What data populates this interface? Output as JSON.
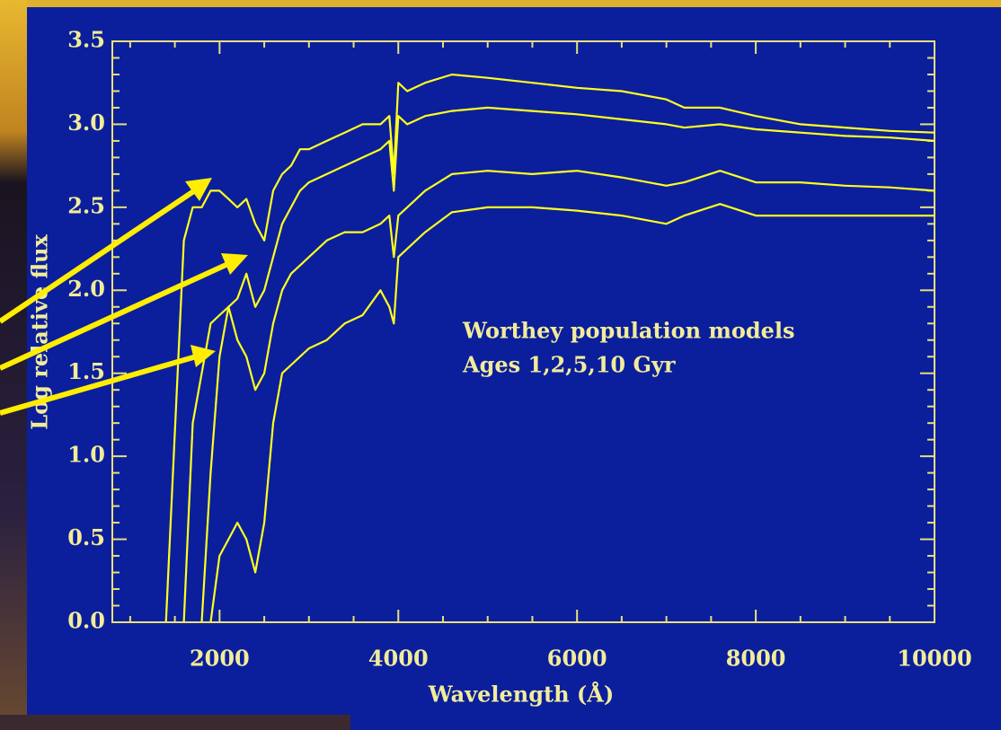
{
  "chart_data": {
    "type": "line",
    "xlabel": "Wavelength (Å)",
    "ylabel": "Log relative flux",
    "annotations": [
      "Worthey population models",
      "Ages 1,2,5,10 Gyr"
    ],
    "x": [
      1400,
      1600,
      1700,
      1800,
      1900,
      2000,
      2100,
      2200,
      2300,
      2400,
      2500,
      2600,
      2700,
      2800,
      2900,
      3000,
      3200,
      3400,
      3600,
      3800,
      3900,
      3950,
      4000,
      4100,
      4300,
      4600,
      5000,
      5500,
      6000,
      6500,
      7000,
      7200,
      7600,
      8000,
      8500,
      9000,
      9500,
      10000
    ],
    "series": [
      {
        "color": "#ffff1e",
        "values": [
          0,
          2.3,
          2.5,
          2.5,
          2.6,
          2.6,
          2.55,
          2.5,
          2.55,
          2.4,
          2.3,
          2.6,
          2.7,
          2.75,
          2.85,
          2.85,
          2.9,
          2.95,
          3.0,
          3.0,
          3.05,
          2.7,
          3.25,
          3.2,
          3.25,
          3.3,
          3.28,
          3.25,
          3.22,
          3.2,
          3.15,
          3.1,
          3.1,
          3.05,
          3.0,
          2.98,
          2.96,
          2.95
        ]
      },
      {
        "color": "#ffff1e",
        "values": [
          null,
          0,
          1.2,
          1.5,
          1.8,
          1.85,
          1.9,
          1.95,
          2.1,
          1.9,
          2.0,
          2.2,
          2.4,
          2.5,
          2.6,
          2.65,
          2.7,
          2.75,
          2.8,
          2.85,
          2.9,
          2.6,
          3.05,
          3.0,
          3.05,
          3.08,
          3.1,
          3.08,
          3.06,
          3.03,
          3.0,
          2.98,
          3.0,
          2.97,
          2.95,
          2.93,
          2.92,
          2.9
        ]
      },
      {
        "color": "#ffff1e",
        "values": [
          null,
          null,
          null,
          0,
          0.9,
          1.6,
          1.9,
          1.7,
          1.6,
          1.4,
          1.5,
          1.8,
          2.0,
          2.1,
          2.15,
          2.2,
          2.3,
          2.35,
          2.35,
          2.4,
          2.45,
          2.2,
          2.45,
          2.5,
          2.6,
          2.7,
          2.72,
          2.7,
          2.72,
          2.68,
          2.63,
          2.65,
          2.72,
          2.65,
          2.65,
          2.63,
          2.62,
          2.6
        ]
      },
      {
        "color": "#ffff1e",
        "values": [
          null,
          null,
          null,
          null,
          0,
          0.4,
          0.5,
          0.6,
          0.5,
          0.3,
          0.6,
          1.2,
          1.5,
          1.55,
          1.6,
          1.65,
          1.7,
          1.8,
          1.85,
          2.0,
          1.9,
          1.8,
          2.2,
          2.25,
          2.35,
          2.47,
          2.5,
          2.5,
          2.48,
          2.45,
          2.4,
          2.45,
          2.52,
          2.45,
          2.45,
          2.45,
          2.45,
          2.45
        ]
      }
    ],
    "xlim": [
      800,
      10000
    ],
    "ylim": [
      0,
      3.5
    ],
    "xticks": [
      2000,
      4000,
      6000,
      8000,
      10000
    ],
    "yticks": [
      {
        "value": 0,
        "label": "0.0"
      },
      0.5,
      {
        "value": 1,
        "label": "1.0"
      },
      1.5,
      {
        "value": 2,
        "label": "2.0"
      },
      2.5,
      {
        "value": 3,
        "label": "3.0"
      },
      3.5
    ]
  }
}
